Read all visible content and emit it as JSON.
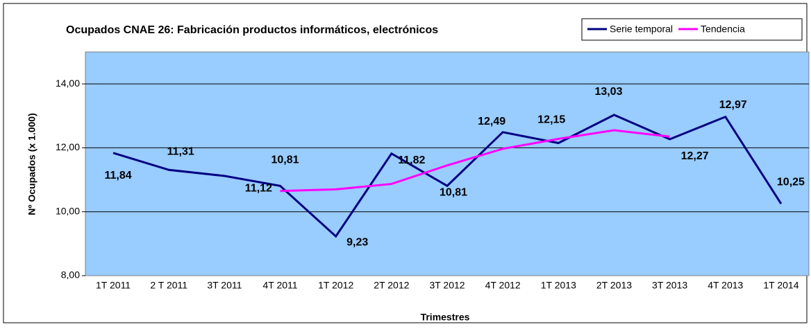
{
  "chart_data": {
    "type": "line",
    "title": "Ocupados CNAE 26: Fabricación productos informáticos, electrónicos",
    "y_label": "Nº Ocupados  (x 1.000)",
    "x_label": "Trimestres",
    "categories": [
      "1T 2011",
      "2 T 2011",
      "3T 2011",
      "4T 2011",
      "1T 2012",
      "2T 2012",
      "3T 2012",
      "4T 2012",
      "1T 2013",
      "2T 2013",
      "3T 2013",
      "4T 2013",
      "1T 2014"
    ],
    "series": [
      {
        "name": "Serie temporal",
        "color": "#000080",
        "values": [
          11.84,
          11.31,
          11.12,
          10.81,
          9.23,
          11.82,
          10.81,
          12.49,
          12.15,
          13.03,
          12.27,
          12.97,
          10.25
        ],
        "value_labels": [
          "11,84",
          "11,31",
          "11,12",
          "10,81",
          "9,23",
          "11,82",
          "10,81",
          "12,49",
          "12,15",
          "13,03",
          "12,27",
          "12,97",
          "10,25"
        ]
      },
      {
        "name": "Tendencia",
        "color": "#ff00ff",
        "values": [
          null,
          null,
          null,
          10.65,
          10.7,
          10.87,
          11.45,
          11.97,
          12.28,
          12.55,
          12.35,
          null,
          null
        ]
      }
    ],
    "ylim": [
      8,
      15
    ],
    "yticks": [
      {
        "value": 8,
        "label": "8,00"
      },
      {
        "value": 10,
        "label": "10,00"
      },
      {
        "value": 12,
        "label": "12,00"
      },
      {
        "value": 14,
        "label": "14,00"
      }
    ],
    "grid": true,
    "legend": "top-right"
  }
}
